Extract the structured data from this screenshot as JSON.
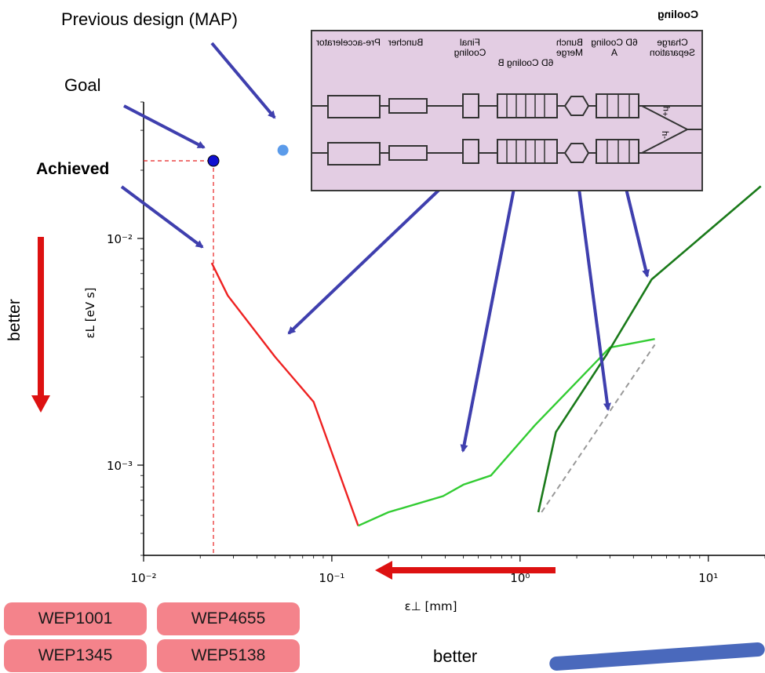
{
  "annotations": {
    "previous_design": "Previous design (MAP)",
    "goal": "Goal",
    "achieved": "Achieved",
    "better_vertical": "better",
    "better_horizontal": "better"
  },
  "tags": [
    "WEP1001",
    "WEP4655",
    "WEP1345",
    "WEP5138"
  ],
  "inset": {
    "title": "Cooling",
    "stages": [
      "Charge Separation",
      "6D Cooling A",
      "Bunch Merge",
      "6D Cooling B",
      "Final Cooling",
      "Buncher",
      "Pre-accelerator"
    ],
    "beam_labels": [
      "μ+",
      "μ-"
    ]
  },
  "colors": {
    "red_path": "#ee2222",
    "green_path": "#33cc33",
    "dark_green_path": "#1a7a1a",
    "dashed_reference": "#999999",
    "annotation_arrows": "#3f3fae",
    "better_arrows": "#dd1111",
    "goal_marker": "#1010d0",
    "map_marker": "#5b9bea",
    "inset_fill": "#e3cde3",
    "tag_fill": "#f4838b"
  },
  "chart_data": {
    "type": "line",
    "xscale": "log",
    "yscale": "log",
    "xlim": [
      0.01,
      20
    ],
    "ylim": [
      0.0004,
      0.04
    ],
    "xlabel": "ε⊥ [mm]",
    "ylabel": "εL [eV s]",
    "xticks": [
      0.01,
      0.1,
      1,
      10
    ],
    "xtick_labels": [
      "10⁻²",
      "10⁻¹",
      "10⁰",
      "10¹"
    ],
    "yticks": [
      0.001,
      0.01
    ],
    "ytick_labels": [
      "10⁻³",
      "10⁻²"
    ],
    "series": [
      {
        "style": "red",
        "x": [
          0.023,
          0.028,
          0.05,
          0.08,
          0.138
        ],
        "y": [
          0.0078,
          0.0056,
          0.003,
          0.0019,
          0.00054
        ]
      },
      {
        "style": "green",
        "x": [
          0.138,
          0.2,
          0.39,
          0.5,
          0.7,
          1.2,
          3.0,
          5.2
        ],
        "y": [
          0.00054,
          0.00062,
          0.00073,
          0.00082,
          0.0009,
          0.0015,
          0.0033,
          0.0036
        ]
      },
      {
        "style": "dark-green",
        "x": [
          1.25,
          1.55,
          2.9,
          5.0,
          19
        ],
        "y": [
          0.00062,
          0.0014,
          0.0031,
          0.0066,
          0.017
        ]
      },
      {
        "style": "dashed-gray",
        "x": [
          1.3,
          5.2
        ],
        "y": [
          0.00062,
          0.0034
        ]
      }
    ],
    "points": [
      {
        "name": "Goal",
        "x": 0.0235,
        "y": 0.022
      },
      {
        "name": "Previous design (MAP)",
        "x": 0.055,
        "y": 0.0245
      }
    ]
  }
}
